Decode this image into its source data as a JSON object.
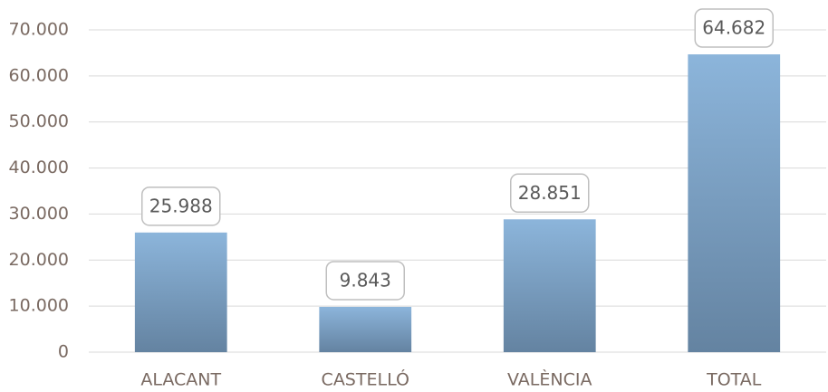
{
  "chart_data": {
    "type": "bar",
    "categories": [
      "ALACANT",
      "CASTELLÓ",
      "VALÈNCIA",
      "TOTAL"
    ],
    "values": [
      25988,
      9843,
      28851,
      64682
    ],
    "value_labels": [
      "25.988",
      "9.843",
      "28.851",
      "64.682"
    ],
    "color": "#7fa6cb",
    "ylim": [
      0,
      70000
    ],
    "yticks": [
      0,
      {
        "value": 10000,
        "label": "10.000"
      },
      {
        "value": 20000,
        "label": "20.000"
      },
      {
        "value": 30000,
        "label": "30.000"
      },
      {
        "value": 40000,
        "label": "40.000"
      },
      {
        "value": 50000,
        "label": "50.000"
      },
      {
        "value": 60000,
        "label": "60.000"
      },
      {
        "value": 70000,
        "label": "70.000"
      }
    ],
    "grid": true
  }
}
